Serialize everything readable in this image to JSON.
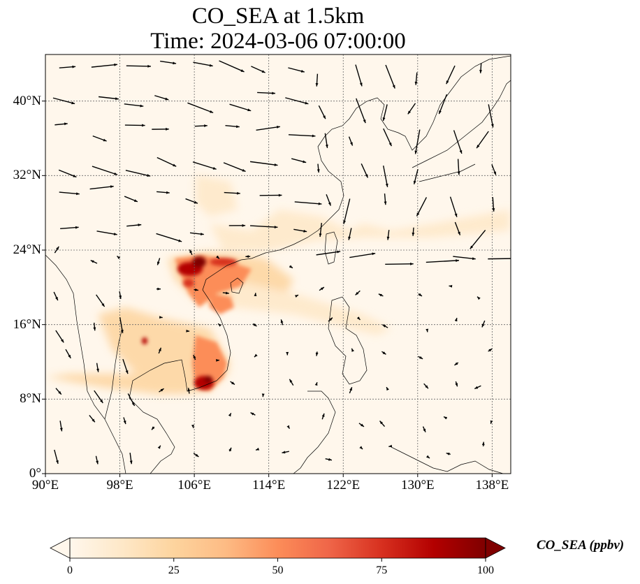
{
  "title": {
    "line1": "CO_SEA at 1.5km",
    "line2": "Time: 2024-03-06 07:00:00"
  },
  "map": {
    "extent": {
      "lon_min": 90,
      "lon_max": 140,
      "lat_min": 0,
      "lat_max": 45
    },
    "lat_ticks": [
      {
        "value": 0,
        "label": "0°"
      },
      {
        "value": 8,
        "label": "8°N"
      },
      {
        "value": 16,
        "label": "16°N"
      },
      {
        "value": 24,
        "label": "24°N"
      },
      {
        "value": 32,
        "label": "32°N"
      },
      {
        "value": 40,
        "label": "40°N"
      }
    ],
    "lon_ticks": [
      {
        "value": 90,
        "label": "90°E"
      },
      {
        "value": 98,
        "label": "98°E"
      },
      {
        "value": 106,
        "label": "106°E"
      },
      {
        "value": 114,
        "label": "114°E"
      },
      {
        "value": 122,
        "label": "122°E"
      },
      {
        "value": 130,
        "label": "130°E"
      },
      {
        "value": 138,
        "label": "138°E"
      }
    ],
    "gridlines": true,
    "wind_vectors_shown": true,
    "coastlines_shown": true
  },
  "colorbar": {
    "label": "CO_SEA (ppbv)",
    "colormap": "OrRd",
    "min": 0,
    "max": 100,
    "extend": "both",
    "ticks": [
      "0",
      "25",
      "50",
      "75",
      "100"
    ],
    "colors": [
      "#fff7ec",
      "#fee8c8",
      "#fdd49e",
      "#fdbb84",
      "#fc8d59",
      "#ef6548",
      "#d7301f",
      "#b30000",
      "#7f0000"
    ]
  }
}
